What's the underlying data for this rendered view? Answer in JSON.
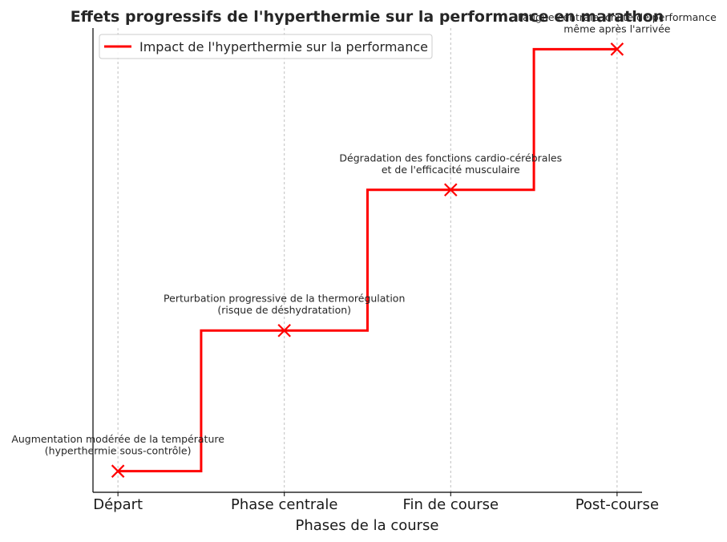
{
  "chart_data": {
    "type": "line",
    "title": "Effets progressifs de l'hyperthermie sur la performance en marathon",
    "xlabel": "Phases de la course",
    "ylabel": "",
    "categories": [
      "Départ",
      "Phase centrale",
      "Fin de course",
      "Post-course"
    ],
    "x": [
      0,
      1,
      2,
      3
    ],
    "step": "mid",
    "ylim": [
      0.85,
      4.15
    ],
    "grid": {
      "x": true,
      "y": false
    },
    "legend": "upper-left",
    "series": [
      {
        "name": "Impact de l'hyperthermie sur la performance",
        "color": "#ff0000",
        "marker": "x",
        "values": [
          1,
          2,
          3,
          4
        ]
      }
    ],
    "annotations": [
      {
        "x": 0,
        "y": 1,
        "lines": [
          "Augmentation modérée de la température",
          "(hyperthermie sous-contrôle)"
        ]
      },
      {
        "x": 1,
        "y": 2,
        "lines": [
          "Perturbation progressive de la thermorégulation",
          "(risque de déshydratation)"
        ]
      },
      {
        "x": 2,
        "y": 3,
        "lines": [
          "Dégradation des fonctions cardio-cérébrales",
          "et de l'efficacité musculaire"
        ]
      },
      {
        "x": 3,
        "y": 4,
        "lines": [
          "Fatigue centrale, chute de performance",
          "même après l'arrivée"
        ]
      }
    ]
  }
}
